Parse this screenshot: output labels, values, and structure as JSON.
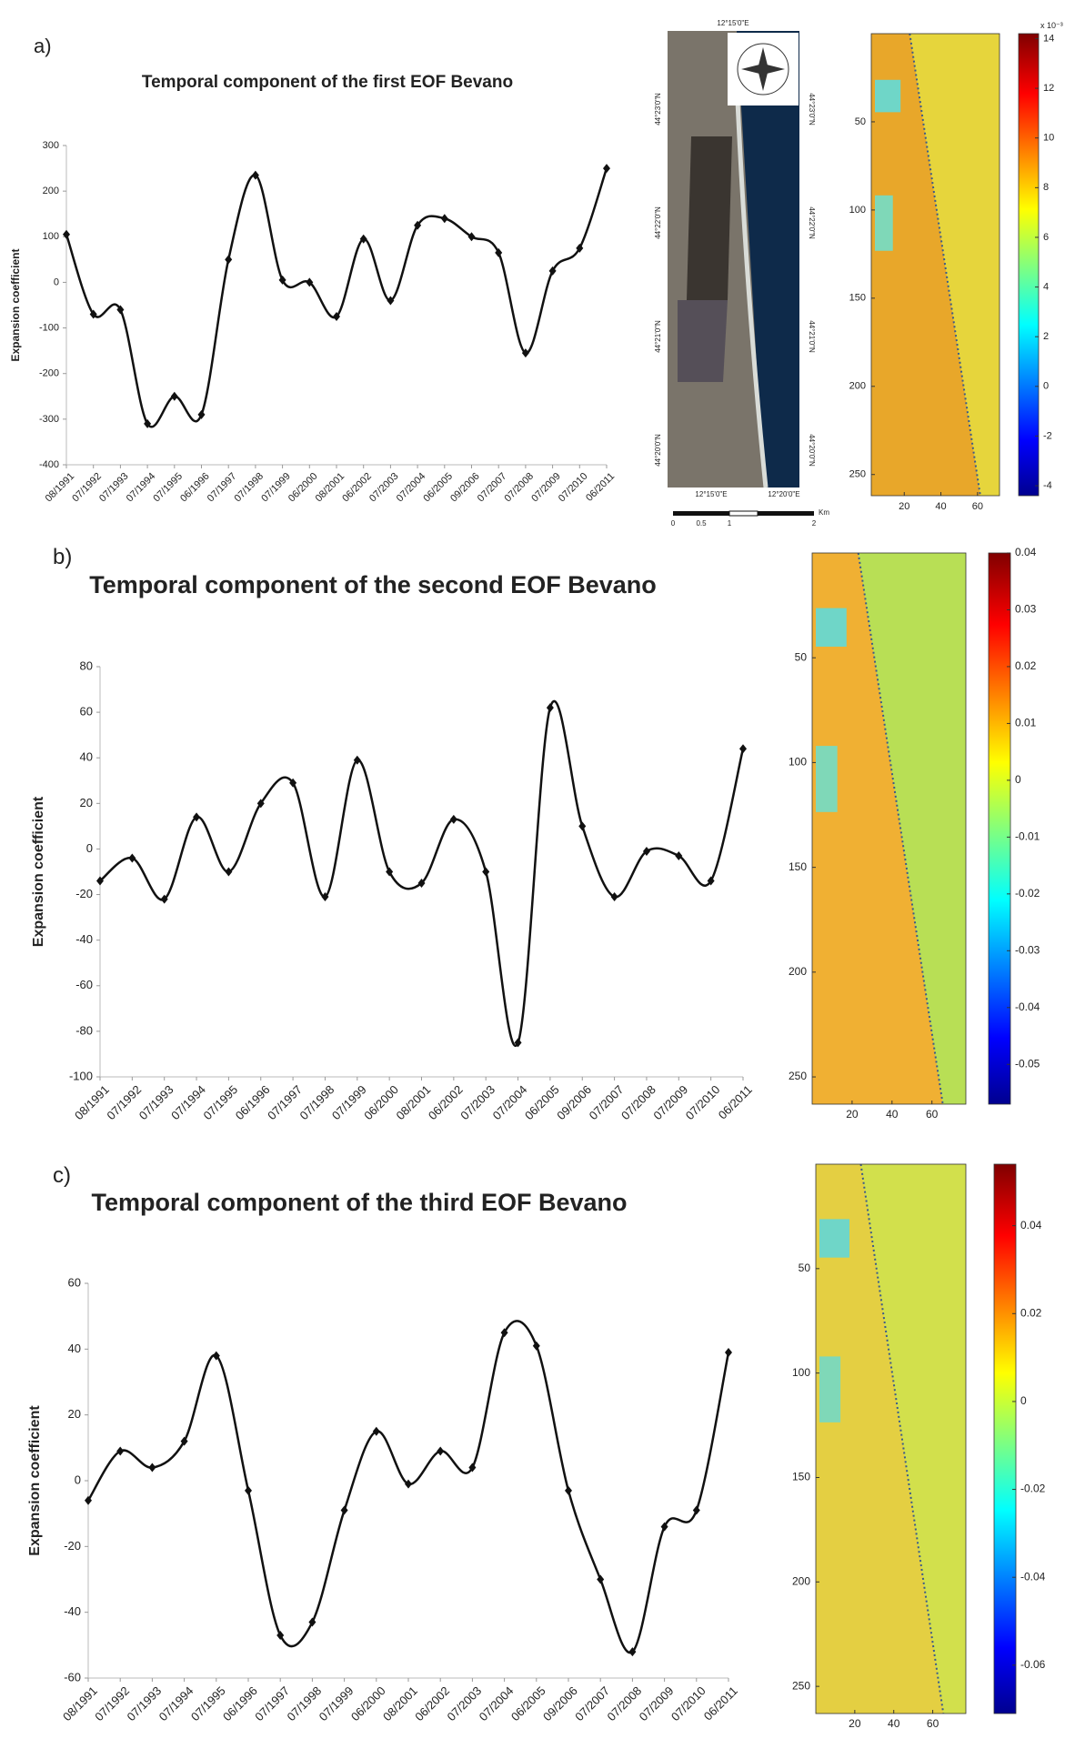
{
  "chart_data": [
    {
      "type": "line",
      "panel": "a)",
      "title": "Temporal component of the first EOF Bevano",
      "ylabel": "Expansion coefficient",
      "categories": [
        "08/1991",
        "07/1992",
        "07/1993",
        "07/1994",
        "07/1995",
        "06/1996",
        "07/1997",
        "07/1998",
        "07/1999",
        "06/2000",
        "08/2001",
        "06/2002",
        "07/2003",
        "07/2004",
        "06/2005",
        "09/2006",
        "07/2007",
        "07/2008",
        "07/2009",
        "07/2010",
        "06/2011"
      ],
      "values": [
        105,
        -70,
        -60,
        -310,
        -250,
        -290,
        50,
        235,
        5,
        0,
        -75,
        95,
        -40,
        125,
        140,
        100,
        65,
        -155,
        25,
        75,
        250
      ],
      "color": "#111111",
      "ylim": [
        -400,
        300
      ],
      "yticks": [
        -400,
        -300,
        -200,
        -100,
        0,
        100,
        200,
        300
      ]
    },
    {
      "type": "heatmap",
      "xlim": [
        2,
        72
      ],
      "ylim": [
        0,
        262
      ],
      "xticks": [
        20,
        40,
        60
      ],
      "yticks": [
        50,
        100,
        150,
        200,
        250
      ],
      "colorbar_label": "x 10⁻³",
      "clim": [
        -4.4,
        14.2
      ],
      "cticks": [
        -4,
        -2,
        0,
        2,
        4,
        6,
        8,
        10,
        12,
        14
      ]
    },
    {
      "type": "line",
      "panel": "b)",
      "title": "Temporal component of the second EOF Bevano",
      "ylabel": "Expansion coefficient",
      "categories": [
        "08/1991",
        "07/1992",
        "07/1993",
        "07/1994",
        "07/1995",
        "06/1996",
        "07/1997",
        "07/1998",
        "07/1999",
        "06/2000",
        "08/2001",
        "06/2002",
        "07/2003",
        "07/2004",
        "06/2005",
        "09/2006",
        "07/2007",
        "07/2008",
        "07/2009",
        "07/2010",
        "06/2011"
      ],
      "values": [
        -14,
        -4,
        -22,
        14,
        -10,
        20,
        29,
        -21,
        39,
        -10,
        -15,
        13,
        -10,
        -85,
        62,
        10,
        -21,
        -1,
        -3,
        -14,
        44
      ],
      "color": "#111111",
      "ylim": [
        -100,
        80
      ],
      "yticks": [
        -100,
        -80,
        -60,
        -40,
        -20,
        0,
        20,
        40,
        60,
        80
      ]
    },
    {
      "type": "heatmap",
      "xlim": [
        0,
        77
      ],
      "ylim": [
        0,
        263
      ],
      "xticks": [
        20,
        40,
        60
      ],
      "yticks": [
        50,
        100,
        150,
        200,
        250
      ],
      "clim": [
        -0.057,
        0.04
      ],
      "cticks": [
        -0.05,
        -0.04,
        -0.03,
        -0.02,
        -0.01,
        0,
        0.01,
        0.02,
        0.03,
        0.04
      ]
    },
    {
      "type": "line",
      "panel": "c)",
      "title": "Temporal component of the third EOF Bevano",
      "ylabel": "Expansion coefficient",
      "categories": [
        "08/1991",
        "07/1992",
        "07/1993",
        "07/1994",
        "07/1995",
        "06/1996",
        "07/1997",
        "07/1998",
        "07/1999",
        "06/2000",
        "08/2001",
        "06/2002",
        "07/2003",
        "07/2004",
        "06/2005",
        "09/2006",
        "07/2007",
        "07/2008",
        "07/2009",
        "07/2010",
        "06/2011"
      ],
      "values": [
        -6,
        9,
        4,
        12,
        38,
        -3,
        -47,
        -43,
        -9,
        15,
        -1,
        9,
        4,
        45,
        41,
        -3,
        -30,
        -52,
        -14,
        -9,
        39
      ],
      "color": "#111111",
      "ylim": [
        -60,
        60
      ],
      "yticks": [
        -60,
        -40,
        -20,
        0,
        20,
        40,
        60
      ]
    },
    {
      "type": "heatmap",
      "xlim": [
        0,
        77
      ],
      "ylim": [
        0,
        263
      ],
      "xticks": [
        20,
        40,
        60
      ],
      "yticks": [
        50,
        100,
        150,
        200,
        250
      ],
      "clim": [
        -0.071,
        0.054
      ],
      "cticks": [
        -0.06,
        -0.04,
        -0.02,
        0,
        0.02,
        0.04
      ]
    }
  ],
  "map": {
    "top": "12°15'0\"E",
    "bottom": [
      "12°15'0\"E",
      "12°20'0\"E"
    ],
    "left": [
      "44°23'0\"N",
      "44°22'0\"N",
      "44°21'0\"N",
      "44°20'0\"N"
    ],
    "right": [
      "44°23'0\"N",
      "44°22'0\"N",
      "44°21'0\"N",
      "44°20'0\"N"
    ],
    "scale": [
      "0",
      "0.5",
      "1",
      "2"
    ],
    "scale_unit": "Km"
  }
}
